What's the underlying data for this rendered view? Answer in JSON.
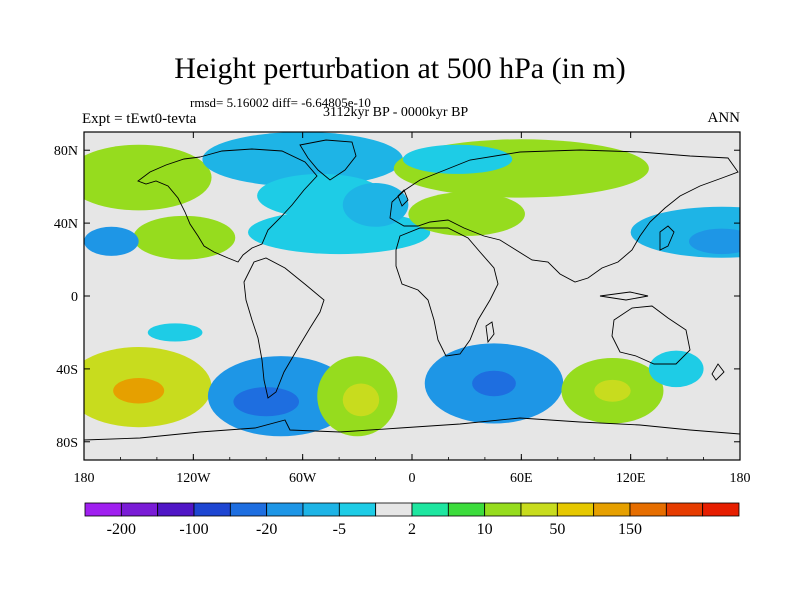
{
  "title": "Height perturbation at 500 hPa (in m)",
  "stats_line": "rmsd= 5.16002 diff= -6.64805e-10",
  "experiment": "Expt = tEwt0-tevta",
  "period": "3112kyr BP - 0000kyr BP",
  "season": "ANN",
  "map": {
    "projection": "cylindrical equidistant",
    "lon_range": [
      -180,
      180
    ],
    "lat_range": [
      -90,
      90
    ],
    "lat_labels": [
      {
        "text": "80N",
        "lat": 80
      },
      {
        "text": "40N",
        "lat": 40
      },
      {
        "text": "0",
        "lat": 0
      },
      {
        "text": "40S",
        "lat": -40
      },
      {
        "text": "80S",
        "lat": -80
      }
    ],
    "lon_labels": [
      {
        "text": "180",
        "lon": -180
      },
      {
        "text": "120W",
        "lon": -120
      },
      {
        "text": "60W",
        "lon": -60
      },
      {
        "text": "0",
        "lon": 0
      },
      {
        "text": "60E",
        "lon": 60
      },
      {
        "text": "120E",
        "lon": 120
      },
      {
        "text": "180",
        "lon": 180
      }
    ]
  },
  "colorbar": {
    "colors": [
      "#a020f0",
      "#7a1cd6",
      "#5016c6",
      "#1e46d2",
      "#1e6ee0",
      "#1e96e6",
      "#1eb4e6",
      "#1ecce6",
      "#e6e6e6",
      "#1ee6a0",
      "#3cdc3c",
      "#96dc1e",
      "#c8dc1e",
      "#e6c800",
      "#e6a000",
      "#e66e00",
      "#e63c00",
      "#e61e00"
    ],
    "labels": [
      {
        "text": "-200",
        "boundary": 1
      },
      {
        "text": "-100",
        "boundary": 3
      },
      {
        "text": "-20",
        "boundary": 5
      },
      {
        "text": "-5",
        "boundary": 7
      },
      {
        "text": "2",
        "boundary": 9
      },
      {
        "text": "10",
        "boundary": 11
      },
      {
        "text": "50",
        "boundary": 13
      },
      {
        "text": "150",
        "boundary": 15
      }
    ]
  },
  "anomalies": [
    {
      "lon": -150,
      "lat": -50,
      "rlon": 40,
      "rlat": 22,
      "level": 12
    },
    {
      "lon": -150,
      "lat": -52,
      "rlon": 14,
      "rlat": 7,
      "level": 14
    },
    {
      "lon": -72,
      "lat": -55,
      "rlon": 40,
      "rlat": 22,
      "level": 5
    },
    {
      "lon": -80,
      "lat": -58,
      "rlon": 18,
      "rlat": 8,
      "level": 4
    },
    {
      "lon": -30,
      "lat": -55,
      "rlon": 22,
      "rlat": 22,
      "level": 11
    },
    {
      "lon": -28,
      "lat": -57,
      "rlon": 10,
      "rlat": 9,
      "level": 12
    },
    {
      "lon": 45,
      "lat": -48,
      "rlon": 38,
      "rlat": 22,
      "level": 5
    },
    {
      "lon": 45,
      "lat": -48,
      "rlon": 12,
      "rlat": 7,
      "level": 4
    },
    {
      "lon": 110,
      "lat": -52,
      "rlon": 28,
      "rlat": 18,
      "level": 11
    },
    {
      "lon": 110,
      "lat": -52,
      "rlon": 10,
      "rlat": 6,
      "level": 12
    },
    {
      "lon": 145,
      "lat": -40,
      "rlon": 15,
      "rlat": 10,
      "level": 7
    },
    {
      "lon": -150,
      "lat": 65,
      "rlon": 40,
      "rlat": 18,
      "level": 11
    },
    {
      "lon": -125,
      "lat": 32,
      "rlon": 28,
      "rlat": 12,
      "level": 11
    },
    {
      "lon": -60,
      "lat": 75,
      "rlon": 55,
      "rlat": 15,
      "level": 6
    },
    {
      "lon": -50,
      "lat": 55,
      "rlon": 35,
      "rlat": 12,
      "level": 7
    },
    {
      "lon": -40,
      "lat": 35,
      "rlon": 50,
      "rlat": 12,
      "level": 7
    },
    {
      "lon": -20,
      "lat": 50,
      "rlon": 18,
      "rlat": 12,
      "level": 6
    },
    {
      "lon": 30,
      "lat": 45,
      "rlon": 32,
      "rlat": 12,
      "level": 11
    },
    {
      "lon": 60,
      "lat": 70,
      "rlon": 70,
      "rlat": 16,
      "level": 11
    },
    {
      "lon": 25,
      "lat": 75,
      "rlon": 30,
      "rlat": 8,
      "level": 7
    },
    {
      "lon": 170,
      "lat": 35,
      "rlon": 50,
      "rlat": 14,
      "level": 6
    },
    {
      "lon": 170,
      "lat": 30,
      "rlon": 18,
      "rlat": 7,
      "level": 5
    },
    {
      "lon": -165,
      "lat": 30,
      "rlon": 15,
      "rlat": 8,
      "level": 5
    },
    {
      "lon": -130,
      "lat": -20,
      "rlon": 15,
      "rlat": 5,
      "level": 7
    }
  ]
}
